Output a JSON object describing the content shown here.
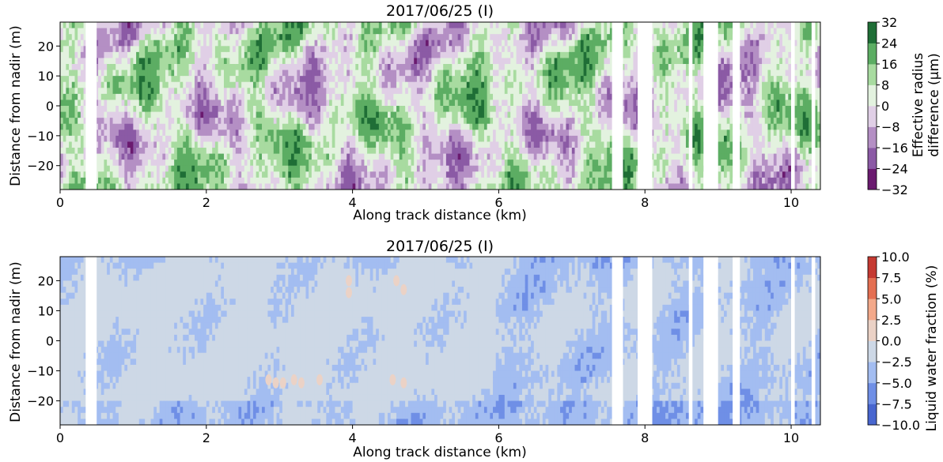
{
  "chart_data": [
    {
      "type": "heatmap",
      "title": "2017/06/25 (I)",
      "xlabel": "Along track distance (km)",
      "ylabel": "Distance from nadir (m)",
      "xlim": [
        0,
        10.4
      ],
      "ylim": [
        -28,
        28
      ],
      "x_ticks": [
        0,
        2,
        4,
        6,
        8,
        10
      ],
      "y_ticks": [
        -20,
        -10,
        0,
        10,
        20
      ],
      "colorbar": {
        "label": "Effective radius difference (μm)",
        "label_lines": [
          "Effective radius",
          "difference (μm)"
        ],
        "levels": [
          -32,
          -24,
          -16,
          -8,
          0,
          8,
          16,
          24,
          32
        ],
        "tick_labels": [
          "−32",
          "−24",
          "−16",
          "−8",
          "0",
          "8",
          "16",
          "24",
          "32"
        ],
        "colors": [
          "#6a1a6f",
          "#8b5aa5",
          "#b48fc4",
          "#e0cfe6",
          "#e3f2df",
          "#a8dba0",
          "#5cad63",
          "#1f6e36"
        ]
      },
      "no_data_x_ranges_km": [
        [
          0.35,
          0.5
        ],
        [
          7.55,
          7.7
        ],
        [
          7.9,
          8.1
        ],
        [
          8.6,
          8.65
        ],
        [
          8.8,
          9.0
        ],
        [
          9.2,
          9.3
        ],
        [
          10.0,
          10.05
        ],
        [
          10.28,
          10.33
        ]
      ],
      "notes": "Diverging contour field of retrieval differences; values predominantly within -16..24 μm"
    },
    {
      "type": "heatmap",
      "title": "2017/06/25 (I)",
      "xlabel": "Along track distance (km)",
      "ylabel": "Distance from nadir (m)",
      "xlim": [
        0,
        10.4
      ],
      "ylim": [
        -28,
        28
      ],
      "x_ticks": [
        0,
        2,
        4,
        6,
        8,
        10
      ],
      "y_ticks": [
        -20,
        -10,
        0,
        10,
        20
      ],
      "colorbar": {
        "label": "Liquid water fraction (%)",
        "levels": [
          -10.0,
          -7.5,
          -5.0,
          -2.5,
          0.0,
          2.5,
          5.0,
          7.5,
          10.0
        ],
        "tick_labels": [
          "−10.0",
          "−7.5",
          "−5.0",
          "−2.5",
          "0.0",
          "2.5",
          "5.0",
          "7.5",
          "10.0"
        ],
        "colors": [
          "#4866cf",
          "#6f8fe6",
          "#a3bdf1",
          "#cdd8e6",
          "#ebd2c6",
          "#f3a98a",
          "#e46f52",
          "#c53a32"
        ]
      },
      "no_data_x_ranges_km": [
        [
          0.35,
          0.5
        ],
        [
          7.55,
          7.7
        ],
        [
          7.9,
          8.1
        ],
        [
          8.6,
          8.65
        ],
        [
          8.8,
          9.0
        ],
        [
          9.2,
          9.3
        ],
        [
          10.0,
          10.05
        ],
        [
          10.28,
          10.33
        ]
      ],
      "notes": "Field dominated by 0.0..-2.5 and -2.5..-5.0 %; small 0..2.5 % patches near x≈2.8-3.6 km and x≈3.9-4.7 km"
    }
  ]
}
